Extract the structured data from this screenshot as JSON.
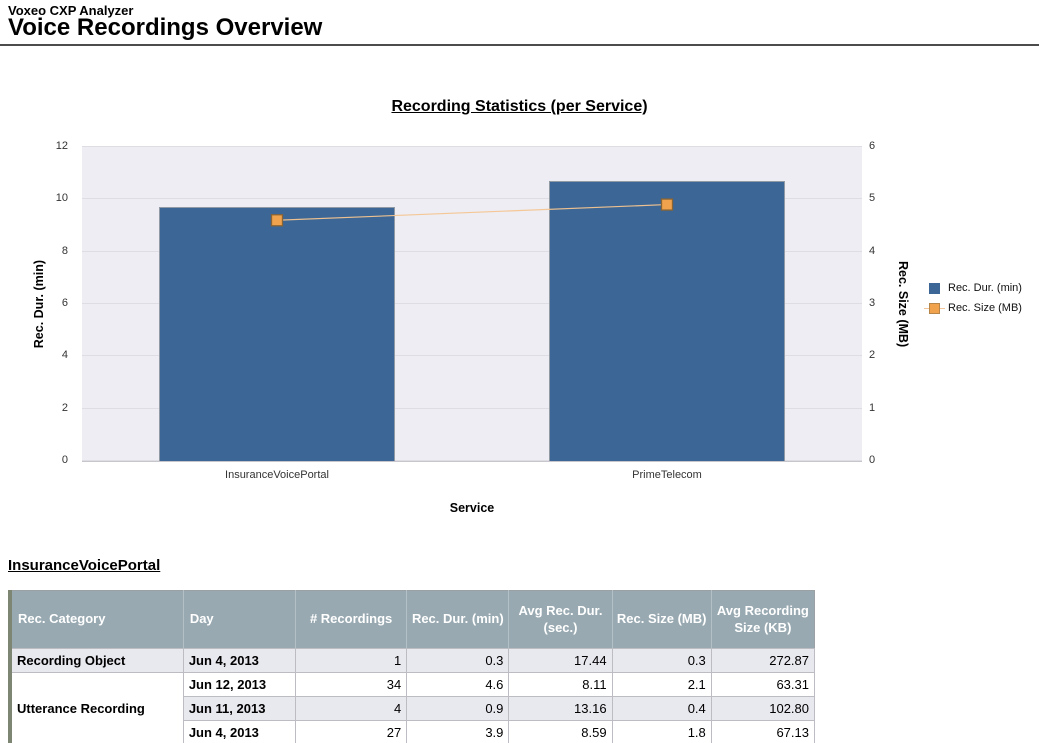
{
  "header": {
    "app_title": "Voxeo CXP Analyzer",
    "page_title": "Voice Recordings Overview"
  },
  "chart_data": {
    "type": "bar",
    "title": "Recording Statistics (per Service)",
    "categories": [
      "InsuranceVoicePortal",
      "PrimeTelecom"
    ],
    "series": [
      {
        "name": "Rec. Dur. (min)",
        "type": "bar",
        "axis": "left",
        "color": "#3b6695",
        "values": [
          9.7,
          10.7
        ]
      },
      {
        "name": "Rec. Size (MB)",
        "type": "line",
        "axis": "right",
        "color": "#f0a24d",
        "values": [
          4.6,
          4.9
        ]
      }
    ],
    "xlabel": "Service",
    "left_axis": {
      "label": "Rec. Dur. (min)",
      "min": 0,
      "max": 12,
      "ticks": [
        0,
        2,
        4,
        6,
        8,
        10,
        12
      ]
    },
    "right_axis": {
      "label": "Rec. Size (MB)",
      "min": 0,
      "max": 6,
      "ticks": [
        0,
        1,
        2,
        3,
        4,
        5,
        6
      ]
    },
    "legend": {
      "position": "right",
      "items": [
        {
          "label": "Rec. Dur. (min)",
          "color": "#3b6695",
          "marker": "square"
        },
        {
          "label": "Rec. Size (MB)",
          "color": "#f0a24d",
          "marker": "square-on-line"
        }
      ]
    },
    "grid": true,
    "plot_bg": "#ededf3"
  },
  "section": {
    "title": "InsuranceVoicePortal"
  },
  "table": {
    "columns": [
      "Rec. Category",
      "Day",
      "# Recordings",
      "Rec. Dur. (min)",
      "Avg Rec. Dur. (sec.)",
      "Rec. Size (MB)",
      "Avg Recording Size (KB)"
    ],
    "rows": [
      {
        "category": "Recording Object",
        "day": "Jun 4, 2013",
        "values": [
          "1",
          "0.3",
          "17.44",
          "0.3",
          "272.87"
        ]
      },
      {
        "category": "Utterance Recording",
        "day": "Jun 12, 2013",
        "values": [
          "34",
          "4.6",
          "8.11",
          "2.1",
          "63.31"
        ]
      },
      {
        "category": null,
        "day": "Jun 11, 2013",
        "values": [
          "4",
          "0.9",
          "13.16",
          "0.4",
          "102.80"
        ]
      },
      {
        "category": null,
        "day": "Jun 4, 2013",
        "values": [
          "27",
          "3.9",
          "8.59",
          "1.8",
          "67.13"
        ]
      }
    ],
    "style": {
      "header_bg": "#98a9b1",
      "stripe_bg": "#e8e8ef",
      "accent_border": "#7d8673"
    }
  }
}
